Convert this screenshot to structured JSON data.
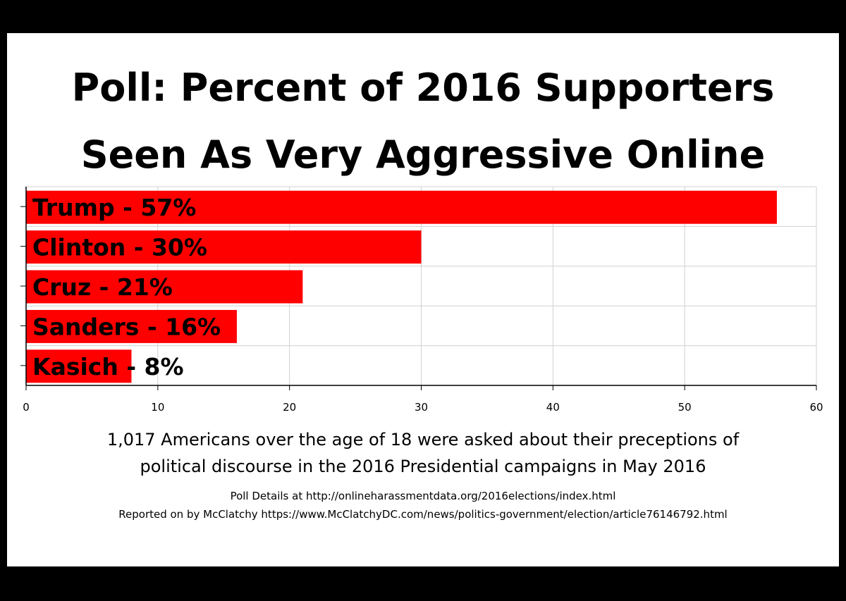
{
  "colors": {
    "bar": "#ff0000",
    "background": "#ffffff",
    "frame": "#000000"
  },
  "title_lines": [
    "Poll: Percent of 2016 Supporters",
    "Seen As Very Aggressive Online"
  ],
  "description_lines": [
    "1,017 Americans over the age of 18 were asked about their preceptions of",
    "political discourse in the 2016 Presidential campaigns in May 2016"
  ],
  "credit_lines": [
    "Poll Details at http://onlineharassmentdata.org/2016elections/index.html",
    "Reported on by McClatchy https://www.McClatchyDC.com/news/politics-government/election/article76146792.html"
  ],
  "chart_data": {
    "type": "bar",
    "orientation": "horizontal",
    "title": "Poll: Percent of 2016 Supporters Seen As Very Aggressive Online",
    "categories": [
      "Trump",
      "Clinton",
      "Cruz",
      "Sanders",
      "Kasich"
    ],
    "values": [
      57,
      30,
      21,
      16,
      8
    ],
    "data_labels": [
      "Trump - 57%",
      "Clinton - 30%",
      "Cruz - 21%",
      "Sanders - 16%",
      "Kasich - 8%"
    ],
    "xlim": [
      0,
      60
    ],
    "xticks": [
      0,
      10,
      20,
      30,
      40,
      50,
      60
    ],
    "xlabel": "",
    "ylabel": "",
    "grid": true,
    "legend": "none"
  }
}
